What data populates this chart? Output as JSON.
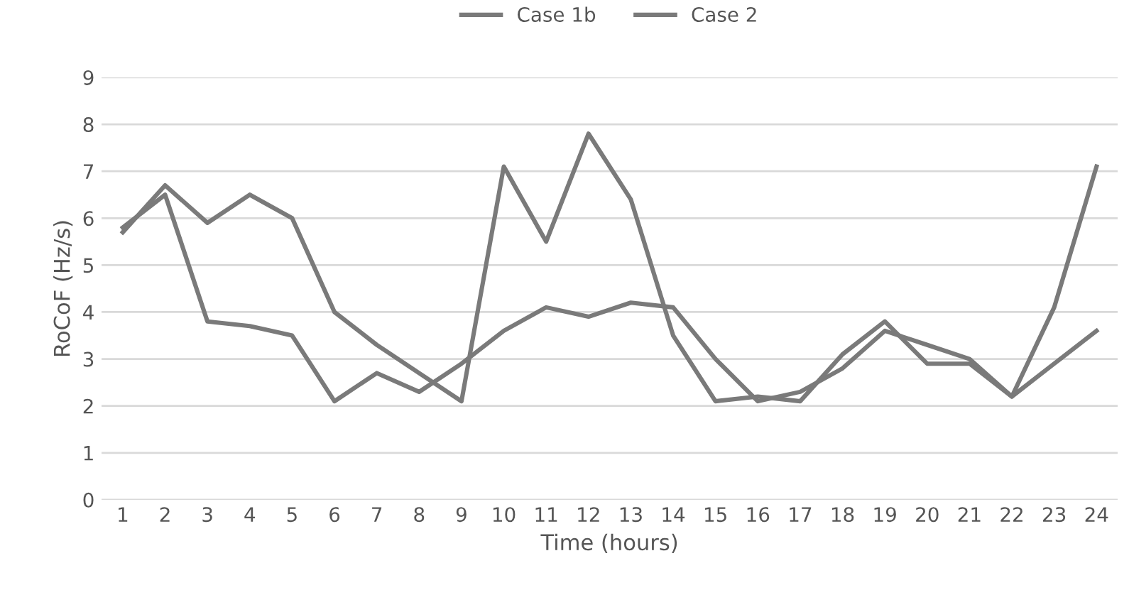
{
  "chart_data": {
    "type": "line",
    "xlabel": "Time (hours)",
    "ylabel": "RoCoF (Hz/s)",
    "categories": [
      "1",
      "2",
      "3",
      "4",
      "5",
      "6",
      "7",
      "8",
      "9",
      "10",
      "11",
      "12",
      "13",
      "14",
      "15",
      "16",
      "17",
      "18",
      "19",
      "20",
      "21",
      "22",
      "23",
      "24"
    ],
    "series": [
      {
        "name": "Case 1b",
        "color": "#7a7a7a",
        "values": [
          5.8,
          6.5,
          3.8,
          3.7,
          3.5,
          2.1,
          2.7,
          2.3,
          2.9,
          3.6,
          4.1,
          3.9,
          4.2,
          4.1,
          3.0,
          2.1,
          2.3,
          2.8,
          3.6,
          3.3,
          3.0,
          2.2,
          2.9,
          3.6
        ]
      },
      {
        "name": "Case 2",
        "color": "#7a7a7a",
        "values": [
          5.7,
          6.7,
          5.9,
          6.5,
          6.0,
          4.0,
          3.3,
          2.7,
          2.1,
          7.1,
          5.5,
          7.8,
          6.4,
          3.5,
          2.1,
          2.2,
          2.1,
          3.1,
          3.8,
          2.9,
          2.9,
          2.2,
          4.1,
          7.1
        ]
      }
    ],
    "ylim": [
      0,
      9
    ],
    "yticks": [
      0,
      1,
      2,
      3,
      4,
      5,
      6,
      7,
      8,
      9
    ],
    "grid": "y",
    "legend": "top",
    "marker": "none",
    "line_style": "solid"
  }
}
